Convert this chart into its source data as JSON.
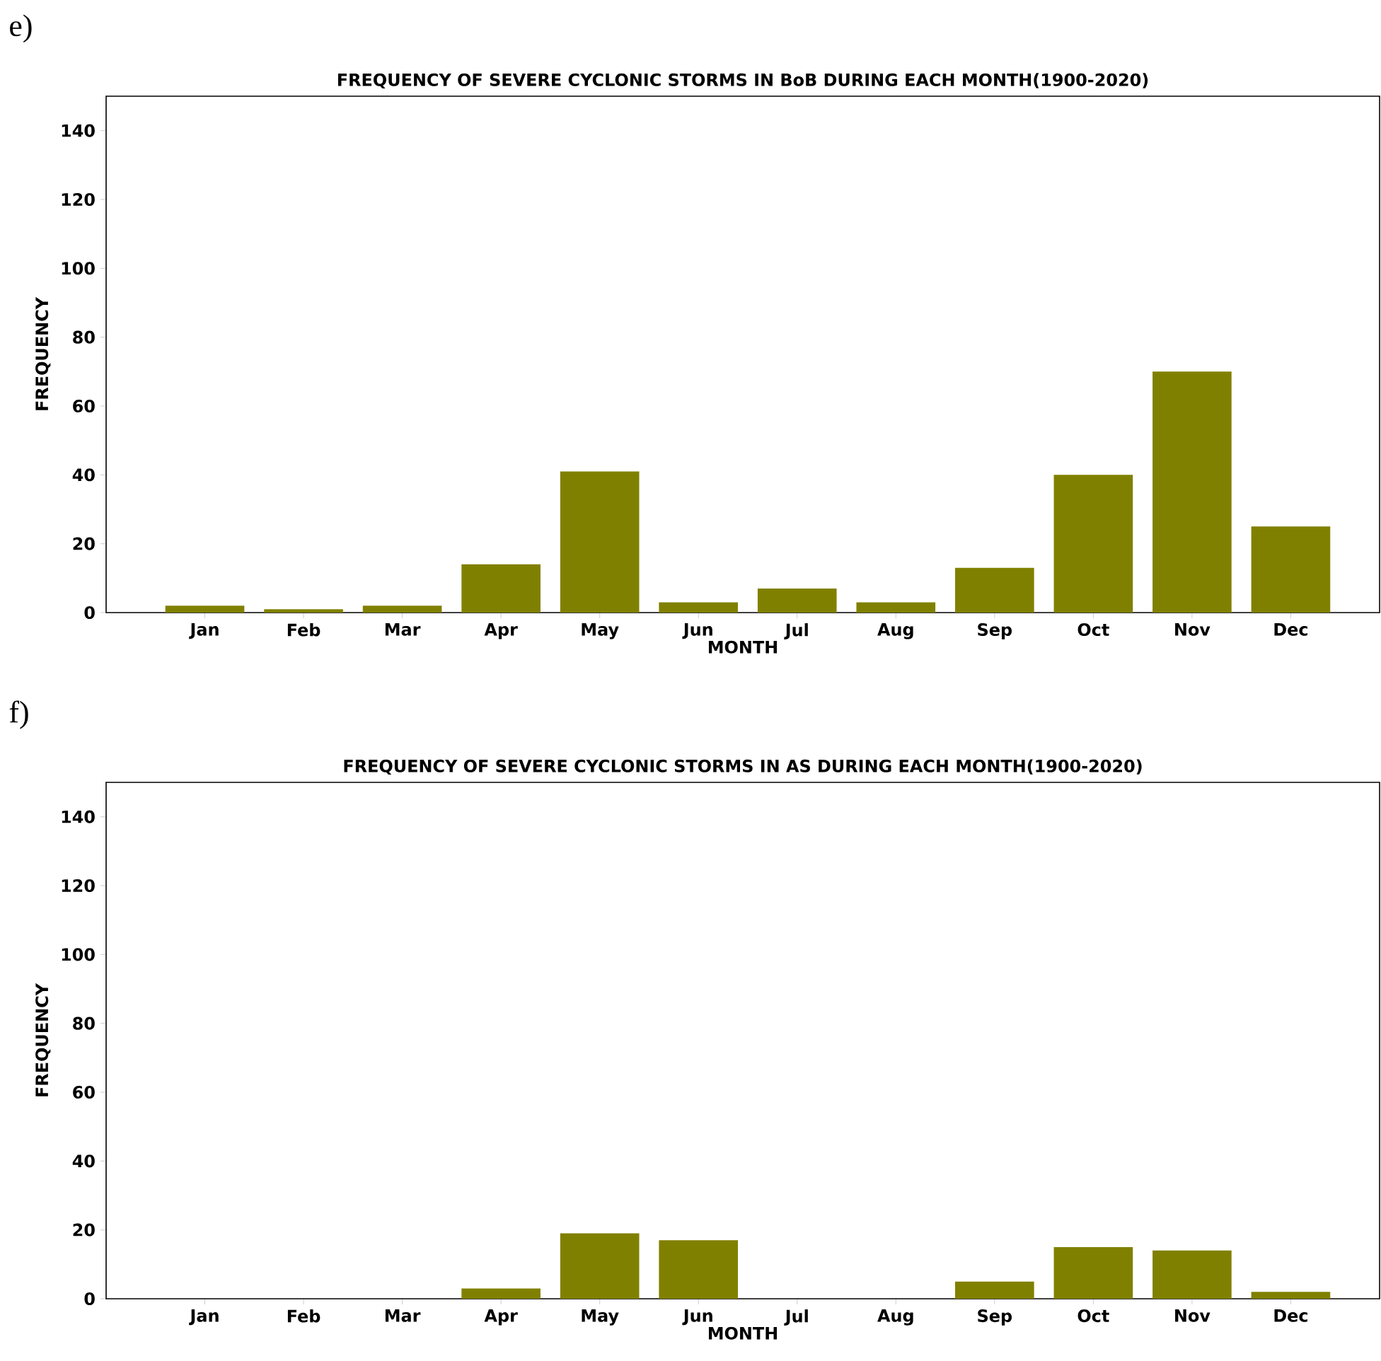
{
  "chart_data": [
    {
      "type": "bar",
      "title": "FREQUENCY OF SEVERE CYCLONIC STORMS IN BoB DURING EACH MONTH(1900-2020)",
      "xlabel": "MONTH",
      "ylabel": "FREQUENCY",
      "annotations": [
        "e)"
      ],
      "categories": [
        "Jan",
        "Feb",
        "Mar",
        "Apr",
        "May",
        "Jun",
        "Jul",
        "Aug",
        "Sep",
        "Oct",
        "Nov",
        "Dec"
      ],
      "values": [
        2,
        1,
        2,
        14,
        41,
        3,
        7,
        3,
        13,
        40,
        70,
        25
      ],
      "color": "#808000",
      "ylim": [
        0,
        150
      ],
      "yticks": [
        0,
        20,
        40,
        60,
        80,
        100,
        120,
        140
      ]
    },
    {
      "type": "bar",
      "title": "FREQUENCY OF SEVERE CYCLONIC STORMS IN AS DURING EACH MONTH(1900-2020)",
      "xlabel": "MONTH",
      "ylabel": "FREQUENCY",
      "annotations": [
        "f)"
      ],
      "categories": [
        "Jan",
        "Feb",
        "Mar",
        "Apr",
        "May",
        "Jun",
        "Jul",
        "Aug",
        "Sep",
        "Oct",
        "Nov",
        "Dec"
      ],
      "values": [
        0,
        0,
        0,
        3,
        19,
        17,
        0,
        0,
        5,
        15,
        14,
        2
      ],
      "color": "#808000",
      "ylim": [
        0,
        150
      ],
      "yticks": [
        0,
        20,
        40,
        60,
        80,
        100,
        120,
        140
      ]
    }
  ]
}
